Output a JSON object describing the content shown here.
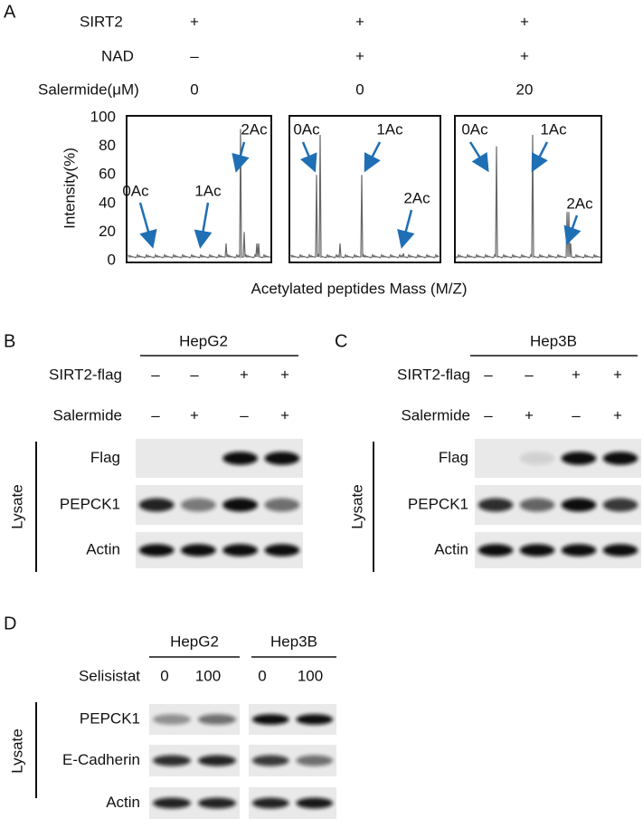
{
  "panel_a": {
    "label": "A",
    "conditions": [
      {
        "name": "SIRT2",
        "values": [
          "+",
          "+",
          "+"
        ]
      },
      {
        "name": "NAD",
        "values": [
          "–",
          "+",
          "+"
        ]
      },
      {
        "name": "Salermide(μM)",
        "values": [
          0,
          0,
          20
        ]
      }
    ],
    "y_axis_label": "Intensity(%)",
    "y_ticks": [
      0,
      20,
      40,
      60,
      80,
      100
    ],
    "x_axis_label": "Acetylated peptides Mass (M/Z)",
    "spectra": [
      {
        "peaks": [
          "0Ac",
          "1Ac",
          "2Ac"
        ]
      },
      {
        "peaks": [
          "0Ac",
          "1Ac",
          "2Ac"
        ]
      },
      {
        "peaks": [
          "0Ac",
          "1Ac",
          "2Ac"
        ]
      }
    ]
  },
  "panel_b": {
    "label": "B",
    "cell_line": "HepG2",
    "conditions": [
      {
        "name": "SIRT2-flag",
        "values": [
          "–",
          "–",
          "+",
          "+"
        ]
      },
      {
        "name": "Salermide",
        "values": [
          "–",
          "+",
          "–",
          "+"
        ]
      }
    ],
    "group_label": "Lysate",
    "blots": [
      "Flag",
      "PEPCK1",
      "Actin"
    ]
  },
  "panel_c": {
    "label": "C",
    "cell_line": "Hep3B",
    "conditions": [
      {
        "name": "SIRT2-flag",
        "values": [
          "–",
          "–",
          "+",
          "+"
        ]
      },
      {
        "name": "Salermide",
        "values": [
          "–",
          "+",
          "–",
          "+"
        ]
      }
    ],
    "group_label": "Lysate",
    "blots": [
      "Flag",
      "PEPCK1",
      "Actin"
    ]
  },
  "panel_d": {
    "label": "D",
    "cell_lines": [
      "HepG2",
      "Hep3B"
    ],
    "conditions": [
      {
        "name": "Selisistat",
        "values": [
          0,
          100,
          0,
          100
        ]
      }
    ],
    "group_label": "Lysate",
    "blots": [
      "PEPCK1",
      "E-Cadherin",
      "Actin"
    ]
  }
}
